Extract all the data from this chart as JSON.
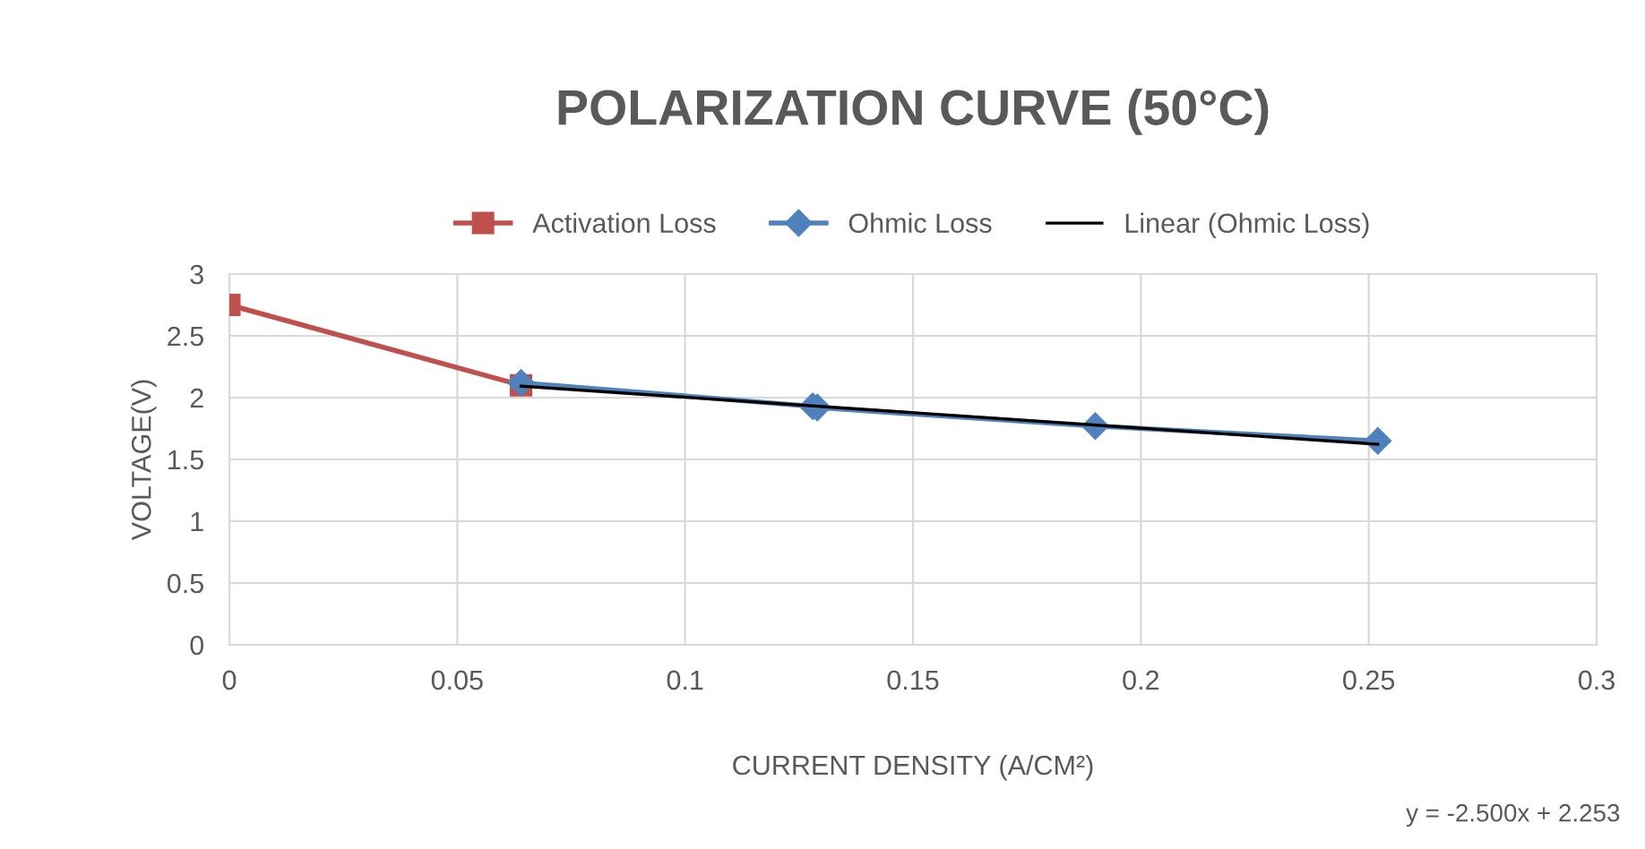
{
  "chart_data": {
    "type": "line",
    "title": "POLARIZATION CURVE (50°C)",
    "xlabel": "CURRENT DENSITY (A/CM²)",
    "ylabel": "VOLTAGE(V)",
    "series": [
      {
        "name": "Activation Loss",
        "color": "#c0504d",
        "marker": "square",
        "x": [
          0,
          0.064
        ],
        "values": [
          2.75,
          2.1
        ]
      },
      {
        "name": "Ohmic Loss",
        "color": "#4f81bd",
        "marker": "diamond",
        "x": [
          0.064,
          0.128,
          0.129,
          0.19,
          0.252
        ],
        "values": [
          2.12,
          1.93,
          1.92,
          1.77,
          1.65
        ]
      },
      {
        "name": "Linear (Ohmic Loss)",
        "color": "#000000",
        "marker": "none",
        "x": [
          0.064,
          0.252
        ],
        "values": [
          2.093,
          1.623
        ]
      }
    ],
    "xlim": [
      0,
      0.3
    ],
    "xticks": [
      0,
      0.05,
      0.1,
      0.15,
      0.2,
      0.25,
      0.3
    ],
    "ylim": [
      0,
      3
    ],
    "yticks": [
      0,
      0.5,
      1,
      1.5,
      2,
      2.5,
      3
    ],
    "grid": true,
    "legend": "top",
    "annotations": [
      "y = -2.500x + 2.253"
    ]
  }
}
